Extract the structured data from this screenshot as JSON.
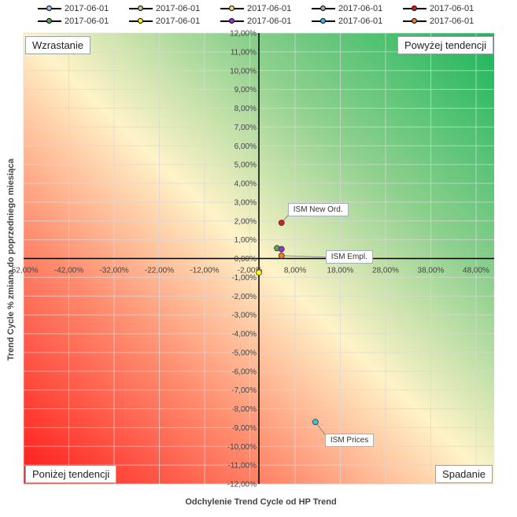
{
  "chart_data": {
    "type": "scatter",
    "xlabel": "Odchylenie Trend Cycle od HP Trend",
    "ylabel": "Trend Cycle % zmiana do poprzedniego miesiąca",
    "xlim": [
      -52,
      52
    ],
    "ylim": [
      -12,
      12
    ],
    "x_ticks": [
      -52,
      -42,
      -32,
      -22,
      -12,
      -2,
      8,
      18,
      28,
      38,
      48
    ],
    "y_ticks": [
      -12,
      -11,
      -10,
      -9,
      -8,
      -7,
      -6,
      -5,
      -4,
      -3,
      -2,
      -1,
      0,
      1,
      2,
      3,
      4,
      5,
      6,
      7,
      8,
      9,
      10,
      11,
      12
    ],
    "grid": true,
    "legend_position": "top",
    "background": "diagonal red-to-green gradient",
    "quadrants": {
      "top_left": "Wzrastanie",
      "top_right": "Powyżej tendencji",
      "bottom_left": "Poniżej tendencji",
      "bottom_right": "Spadanie"
    },
    "series": [
      {
        "name": "2017-06-01",
        "color": "#9dc3e6",
        "x": null,
        "y": null
      },
      {
        "name": "2017-06-01",
        "color": "#a9d18e",
        "x": null,
        "y": null
      },
      {
        "name": "2017-06-01",
        "color": "#ffd966",
        "x": null,
        "y": null
      },
      {
        "name": "2017-06-01",
        "color": "#a6a6a6",
        "x": null,
        "y": null
      },
      {
        "name": "2017-06-01",
        "color": "#e31a1c",
        "x": 5,
        "y": 1.9,
        "label": "ISM New Ord."
      },
      {
        "name": "2017-06-01",
        "color": "#4caf50",
        "x": 4,
        "y": 0.55
      },
      {
        "name": "2017-06-01",
        "color": "#ffff00",
        "x": 0,
        "y": -0.75
      },
      {
        "name": "2017-06-01",
        "color": "#9933cc",
        "x": 5,
        "y": 0.5
      },
      {
        "name": "2017-06-01",
        "color": "#33c3e3",
        "x": 12.5,
        "y": -8.7,
        "label": "ISM Prices"
      },
      {
        "name": "2017-06-01",
        "color": "#ed7d31",
        "x": 5,
        "y": 0.15,
        "label": "ISM Empl."
      }
    ]
  }
}
